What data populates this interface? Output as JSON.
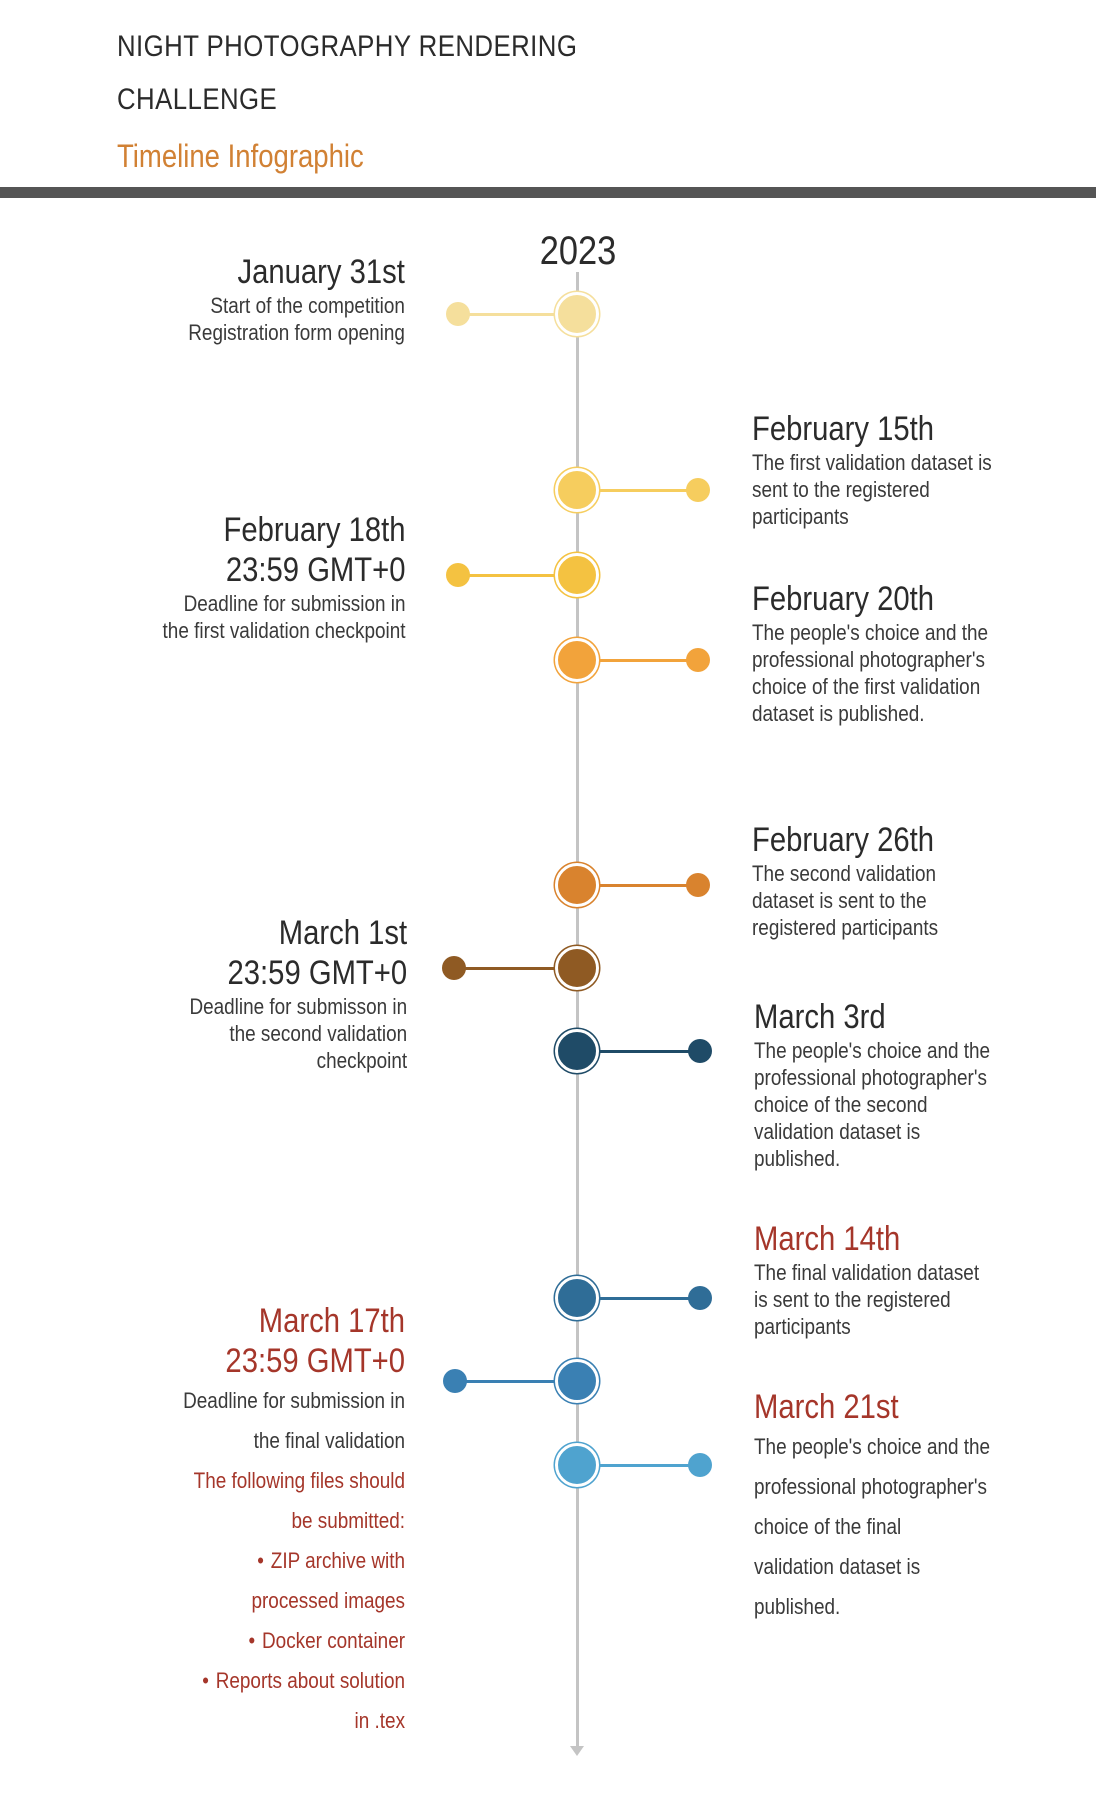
{
  "header": {
    "title_line1": "NIGHT PHOTOGRAPHY RENDERING",
    "title_line2": "CHALLENGE",
    "subtitle": "Timeline Infographic"
  },
  "timeline": {
    "year": "2023",
    "events": [
      {
        "side": "left",
        "title": [
          "January 31st"
        ],
        "description": [
          "Start of the competition",
          "Registration form opening"
        ],
        "color": "#f5df9c"
      },
      {
        "side": "right",
        "title": [
          "February 15th"
        ],
        "description": [
          "The first validation dataset is",
          "sent to the registered",
          "participants"
        ],
        "color": "#f6cd5e"
      },
      {
        "side": "left",
        "title": [
          "February 18th",
          "23:59 GMT+0"
        ],
        "description": [
          "Deadline for submission in",
          "the first validation checkpoint"
        ],
        "color": "#f4c241"
      },
      {
        "side": "right",
        "title": [
          "February 20th"
        ],
        "description": [
          "The people's choice and the",
          "professional photographer's",
          "choice of the first validation",
          "dataset is published."
        ],
        "color": "#f2a33b"
      },
      {
        "side": "right",
        "title": [
          "February 26th"
        ],
        "description": [
          "The second validation",
          "dataset is sent to the",
          "registered participants"
        ],
        "color": "#d9832e"
      },
      {
        "side": "left",
        "title": [
          "March 1st",
          "23:59 GMT+0"
        ],
        "description": [
          "Deadline for submisson in",
          "the second validation",
          "checkpoint"
        ],
        "color": "#8f5a23"
      },
      {
        "side": "right",
        "title": [
          "March 3rd"
        ],
        "description": [
          "The people's choice and the",
          "professional photographer's",
          "choice of the second",
          "validation dataset is",
          "published."
        ],
        "color": "#1f4b67"
      },
      {
        "side": "right",
        "title": [
          "March 14th"
        ],
        "description": [
          "The final validation dataset",
          "is sent to the registered",
          "participants"
        ],
        "color": "#2f6d97"
      },
      {
        "side": "left",
        "title": [
          "March 17th",
          "23:59 GMT+0"
        ],
        "description": [
          "Deadline for submission in",
          "the final validation"
        ],
        "note": [
          "The following files should",
          "be submitted:"
        ],
        "bullets": [
          [
            "ZIP archive with",
            "processed images"
          ],
          [
            "Docker container"
          ],
          [
            "Reports about solution",
            "in .tex"
          ]
        ],
        "color": "#3a80b3"
      },
      {
        "side": "right",
        "title": [
          "March 21st"
        ],
        "description": [
          "The people's choice and the",
          "professional photographer's",
          "choice of the final",
          "validation dataset is",
          "published."
        ],
        "color": "#4fa3cf"
      }
    ]
  },
  "accent_colors": {
    "header_subtitle": "#d18134",
    "highlight_text": "#a5362a",
    "axis": "#c4c4c4",
    "rule": "#555555"
  }
}
